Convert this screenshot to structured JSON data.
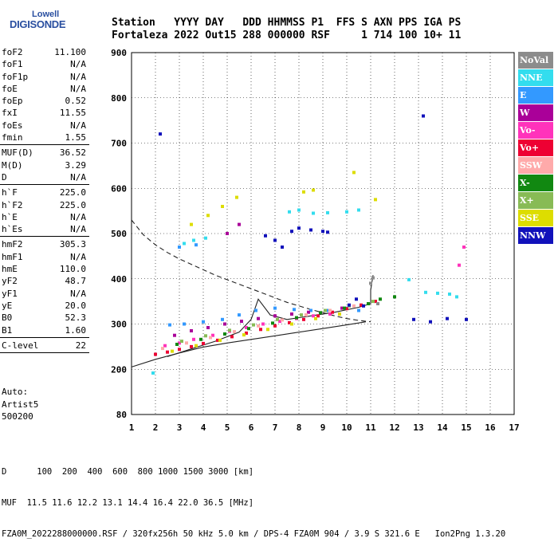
{
  "logo": {
    "top": "Lowell",
    "bottom": "DIGISONDE"
  },
  "header": {
    "line1": "Station   YYYY DAY   DDD HHMMSS P1  FFS S AXN PPS IGA PS",
    "line2": "Fortaleza 2022 Out15 288 000000 RSF     1 714 100 10+ 11"
  },
  "params": [
    {
      "label": "foF2",
      "value": "11.100"
    },
    {
      "label": "foF1",
      "value": "N/A"
    },
    {
      "label": "foF1p",
      "value": "N/A"
    },
    {
      "label": "foE",
      "value": "N/A"
    },
    {
      "label": "foEp",
      "value": "0.52"
    },
    {
      "label": "fxI",
      "value": "11.55"
    },
    {
      "label": "foEs",
      "value": "N/A"
    },
    {
      "label": "fmin",
      "value": "1.55",
      "sep": true
    },
    {
      "label": "MUF(D)",
      "value": "36.52"
    },
    {
      "label": "M(D)",
      "value": "3.29"
    },
    {
      "label": "D",
      "value": "N/A",
      "sep": true
    },
    {
      "label": "h`F",
      "value": "225.0"
    },
    {
      "label": "h`F2",
      "value": "225.0"
    },
    {
      "label": "h`E",
      "value": "N/A"
    },
    {
      "label": "h`Es",
      "value": "N/A",
      "sep": true
    },
    {
      "label": "hmF2",
      "value": "305.3"
    },
    {
      "label": "hmF1",
      "value": "N/A"
    },
    {
      "label": "hmE",
      "value": "110.0"
    },
    {
      "label": "yF2",
      "value": "48.7"
    },
    {
      "label": "yF1",
      "value": "N/A"
    },
    {
      "label": "yE",
      "value": "20.0"
    },
    {
      "label": "B0",
      "value": "52.3"
    },
    {
      "label": "B1",
      "value": "1.60",
      "sep": true
    },
    {
      "label": "C-level",
      "value": "22",
      "sep": true
    }
  ],
  "auto": {
    "line1": "Auto:",
    "line2": "Artist5",
    "line3": "500200"
  },
  "legend": [
    {
      "label": "NoVal",
      "color": "#8c8c8c"
    },
    {
      "label": "NNE",
      "color": "#33ddee"
    },
    {
      "label": "E",
      "color": "#3399ff"
    },
    {
      "label": "W",
      "color": "#aa0099"
    },
    {
      "label": "Vo-",
      "color": "#ff33bb"
    },
    {
      "label": "Vo+",
      "color": "#ee0033"
    },
    {
      "label": "SSW",
      "color": "#ffaaaa"
    },
    {
      "label": "X-",
      "color": "#118811"
    },
    {
      "label": "X+",
      "color": "#88bb55"
    },
    {
      "label": "SSE",
      "color": "#dddd00"
    },
    {
      "label": "NNW",
      "color": "#1111bb"
    }
  ],
  "footer": {
    "line1": "D      100  200  400  600  800 1000 1500 3000 [km]",
    "line2": "MUF  11.5 11.6 12.2 13.1 14.4 16.4 22.0 36.5 [MHz]",
    "line3": "FZA0M_2022288000000.RSF / 320fx256h 50 kHz 5.0 km / DPS-4 FZA0M 904 / 3.9 S 321.6 E   Ion2Png 1.3.20"
  },
  "chart_data": {
    "type": "scatter",
    "xlim": [
      1,
      17
    ],
    "ylim": [
      80,
      900
    ],
    "xticks": [
      1,
      2,
      3,
      4,
      5,
      6,
      7,
      8,
      9,
      10,
      11,
      12,
      13,
      14,
      15,
      16,
      17
    ],
    "yticks": [
      80,
      200,
      300,
      400,
      500,
      600,
      700,
      800,
      900
    ],
    "grid": true,
    "series": [
      {
        "legend": "NNE",
        "color": "#33ddee",
        "points": [
          [
            3.2,
            478
          ],
          [
            3.6,
            485
          ],
          [
            4.1,
            490
          ],
          [
            7.6,
            548
          ],
          [
            8.0,
            552
          ],
          [
            8.6,
            545
          ],
          [
            9.2,
            546
          ],
          [
            10.0,
            548
          ],
          [
            10.5,
            552
          ],
          [
            13.3,
            370
          ],
          [
            13.8,
            368
          ],
          [
            14.3,
            366
          ],
          [
            14.6,
            360
          ],
          [
            1.9,
            190
          ],
          [
            12.6,
            398
          ]
        ]
      },
      {
        "legend": "E",
        "color": "#3399ff",
        "points": [
          [
            2.6,
            298
          ],
          [
            3.2,
            300
          ],
          [
            4.0,
            305
          ],
          [
            4.8,
            310
          ],
          [
            5.5,
            320
          ],
          [
            6.2,
            330
          ],
          [
            7.0,
            335
          ],
          [
            7.8,
            332
          ],
          [
            8.5,
            330
          ],
          [
            9.2,
            330
          ],
          [
            10.0,
            335
          ],
          [
            10.5,
            330
          ],
          [
            3.0,
            470
          ],
          [
            3.7,
            475
          ]
        ]
      },
      {
        "legend": "W",
        "color": "#aa0099",
        "points": [
          [
            2.8,
            275
          ],
          [
            3.5,
            285
          ],
          [
            4.2,
            292
          ],
          [
            4.9,
            300
          ],
          [
            5.6,
            306
          ],
          [
            6.3,
            312
          ],
          [
            7.0,
            318
          ],
          [
            7.7,
            322
          ],
          [
            8.4,
            326
          ],
          [
            9.1,
            330
          ],
          [
            9.8,
            335
          ],
          [
            5.0,
            500
          ],
          [
            5.5,
            520
          ]
        ]
      },
      {
        "legend": "Vo-",
        "color": "#ff33bb",
        "points": [
          [
            2.4,
            252
          ],
          [
            3.0,
            258
          ],
          [
            3.6,
            266
          ],
          [
            4.4,
            275
          ],
          [
            5.1,
            284
          ],
          [
            5.8,
            292
          ],
          [
            6.5,
            300
          ],
          [
            7.2,
            306
          ],
          [
            7.9,
            312
          ],
          [
            8.6,
            318
          ],
          [
            9.3,
            322
          ],
          [
            14.7,
            430
          ],
          [
            14.9,
            470
          ]
        ]
      },
      {
        "legend": "Vo+",
        "color": "#ee0033",
        "points": [
          [
            2.0,
            233
          ],
          [
            2.5,
            238
          ],
          [
            3.0,
            244
          ],
          [
            3.5,
            250
          ],
          [
            4.0,
            257
          ],
          [
            4.6,
            264
          ],
          [
            5.2,
            272
          ],
          [
            5.8,
            280
          ],
          [
            6.4,
            288
          ],
          [
            7.0,
            296
          ],
          [
            7.6,
            303
          ],
          [
            8.2,
            310
          ],
          [
            8.8,
            318
          ],
          [
            9.4,
            326
          ],
          [
            10.0,
            334
          ],
          [
            10.6,
            342
          ],
          [
            11.2,
            350
          ]
        ]
      },
      {
        "legend": "SSW",
        "color": "#ffaaaa",
        "points": [
          [
            2.3,
            246
          ],
          [
            3.3,
            258
          ],
          [
            4.3,
            270
          ],
          [
            5.3,
            283
          ],
          [
            6.3,
            296
          ],
          [
            7.3,
            309
          ],
          [
            8.3,
            320
          ],
          [
            9.3,
            330
          ],
          [
            10.3,
            340
          ]
        ]
      },
      {
        "legend": "X-",
        "color": "#118811",
        "points": [
          [
            2.9,
            255
          ],
          [
            3.9,
            266
          ],
          [
            4.9,
            278
          ],
          [
            5.9,
            290
          ],
          [
            6.9,
            302
          ],
          [
            7.9,
            314
          ],
          [
            8.9,
            325
          ],
          [
            9.9,
            335
          ],
          [
            10.9,
            345
          ],
          [
            11.4,
            355
          ],
          [
            12.0,
            360
          ]
        ]
      },
      {
        "legend": "X+",
        "color": "#88bb55",
        "points": [
          [
            3.1,
            262
          ],
          [
            4.1,
            274
          ],
          [
            5.1,
            286
          ],
          [
            6.1,
            298
          ],
          [
            7.1,
            310
          ],
          [
            8.1,
            320
          ],
          [
            9.1,
            330
          ],
          [
            10.1,
            340
          ],
          [
            11.1,
            350
          ]
        ]
      },
      {
        "legend": "SSE",
        "color": "#dddd00",
        "points": [
          [
            2.7,
            240
          ],
          [
            3.7,
            252
          ],
          [
            4.7,
            264
          ],
          [
            5.7,
            276
          ],
          [
            6.7,
            288
          ],
          [
            7.7,
            300
          ],
          [
            8.7,
            312
          ],
          [
            9.7,
            322
          ],
          [
            3.5,
            520
          ],
          [
            4.2,
            540
          ],
          [
            4.8,
            560
          ],
          [
            5.4,
            580
          ],
          [
            8.2,
            592
          ],
          [
            8.6,
            596
          ],
          [
            10.3,
            635
          ],
          [
            11.2,
            575
          ]
        ]
      },
      {
        "legend": "NNW",
        "color": "#1111bb",
        "points": [
          [
            7.7,
            505
          ],
          [
            8.0,
            512
          ],
          [
            8.5,
            508
          ],
          [
            9.0,
            505
          ],
          [
            9.2,
            503
          ],
          [
            7.3,
            470
          ],
          [
            7.0,
            485
          ],
          [
            6.6,
            495
          ],
          [
            10.1,
            342
          ],
          [
            10.4,
            355
          ],
          [
            10.7,
            340
          ],
          [
            12.8,
            310
          ],
          [
            13.5,
            305
          ],
          [
            14.2,
            312
          ],
          [
            15.0,
            310
          ],
          [
            2.2,
            720
          ],
          [
            13.2,
            760
          ]
        ]
      },
      {
        "legend": "NoVal",
        "color": "#8c8c8c",
        "points": [
          [
            11.0,
            390
          ],
          [
            11.1,
            402
          ],
          [
            11.3,
            345
          ]
        ]
      }
    ],
    "curves": [
      {
        "style": "dashed",
        "points": [
          [
            1.0,
            530
          ],
          [
            1.5,
            497
          ],
          [
            2.0,
            475
          ],
          [
            2.5,
            458
          ],
          [
            3.0,
            444
          ],
          [
            3.5,
            432
          ],
          [
            4.0,
            420
          ],
          [
            4.5,
            408
          ],
          [
            5.0,
            398
          ],
          [
            5.5,
            388
          ],
          [
            6.0,
            378
          ],
          [
            6.5,
            368
          ],
          [
            7.0,
            358
          ],
          [
            7.5,
            348
          ],
          [
            8.0,
            340
          ],
          [
            8.5,
            332
          ],
          [
            9.0,
            325
          ],
          [
            9.5,
            318
          ],
          [
            10.0,
            312
          ],
          [
            10.5,
            308
          ],
          [
            11.0,
            305
          ]
        ]
      },
      {
        "style": "solid",
        "points": [
          [
            1.0,
            205
          ],
          [
            2.0,
            222
          ],
          [
            3.0,
            236
          ],
          [
            4.0,
            249
          ],
          [
            5.0,
            258
          ],
          [
            6.0,
            266
          ],
          [
            7.0,
            274
          ],
          [
            8.0,
            282
          ],
          [
            9.0,
            290
          ],
          [
            10.0,
            298
          ],
          [
            10.8,
            305
          ]
        ]
      },
      {
        "style": "solid",
        "points": [
          [
            2.5,
            228
          ],
          [
            3.5,
            245
          ],
          [
            4.5,
            262
          ],
          [
            5.5,
            282
          ],
          [
            6.0,
            310
          ],
          [
            6.3,
            355
          ],
          [
            6.8,
            320
          ],
          [
            7.5,
            310
          ],
          [
            8.5,
            318
          ],
          [
            9.5,
            326
          ],
          [
            10.5,
            337
          ],
          [
            11.0,
            345
          ],
          [
            11.0,
            375
          ],
          [
            11.1,
            408
          ]
        ]
      }
    ]
  }
}
